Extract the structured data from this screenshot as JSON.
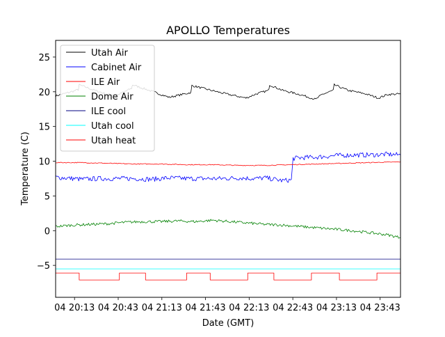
{
  "chart_data": {
    "type": "line",
    "title": "APOLLO Temperatures",
    "xlabel": "Date (GMT)",
    "ylabel": "Temperature (C)",
    "xlim": [
      20.0,
      23.95
    ],
    "ylim": [
      -9.6,
      27.4
    ],
    "x_units": "hours (GMT) on day 04",
    "xticks": [
      {
        "value": 20.2167,
        "label": "04 20:13"
      },
      {
        "value": 20.7167,
        "label": "04 20:43"
      },
      {
        "value": 21.2167,
        "label": "04 21:13"
      },
      {
        "value": 21.7167,
        "label": "04 21:43"
      },
      {
        "value": 22.2167,
        "label": "04 22:13"
      },
      {
        "value": 22.7167,
        "label": "04 22:43"
      },
      {
        "value": 23.2167,
        "label": "04 23:13"
      },
      {
        "value": 23.7167,
        "label": "04 23:43"
      }
    ],
    "yticks": [
      {
        "value": -5,
        "label": "−5"
      },
      {
        "value": 0,
        "label": "0"
      },
      {
        "value": 5,
        "label": "5"
      },
      {
        "value": 10,
        "label": "10"
      },
      {
        "value": 15,
        "label": "15"
      },
      {
        "value": 20,
        "label": "20"
      },
      {
        "value": 25,
        "label": "25"
      }
    ],
    "legend_position": "top-left",
    "series": [
      {
        "name": "Utah Air",
        "color": "#000000",
        "x": [
          20.0,
          20.15,
          20.26,
          20.27,
          20.45,
          20.6,
          20.72,
          20.87,
          20.88,
          21.05,
          21.3,
          21.55,
          21.56,
          21.75,
          21.95,
          22.18,
          22.3,
          22.44,
          22.45,
          22.6,
          22.8,
          22.98,
          23.05,
          23.18,
          23.19,
          23.35,
          23.55,
          23.7,
          23.8,
          23.95
        ],
        "values": [
          19.4,
          19.9,
          20.3,
          21.0,
          20.2,
          19.6,
          19.6,
          20.5,
          21.0,
          20.3,
          19.2,
          19.9,
          20.9,
          20.3,
          19.7,
          19.1,
          19.7,
          20.2,
          21.0,
          20.2,
          19.6,
          18.9,
          19.6,
          20.2,
          21.0,
          20.2,
          19.7,
          19.1,
          19.6,
          19.7
        ]
      },
      {
        "name": "Cabinet Air",
        "color": "#0000ff",
        "x": [
          20.0,
          20.1,
          20.3,
          20.5,
          20.7,
          20.9,
          21.1,
          21.3,
          21.5,
          21.7,
          21.9,
          22.1,
          22.3,
          22.4,
          22.5,
          22.6,
          22.7,
          22.72,
          22.8,
          23.0,
          23.2,
          23.4,
          23.6,
          23.8,
          23.95
        ],
        "values": [
          7.7,
          7.6,
          7.4,
          7.5,
          7.5,
          7.5,
          7.4,
          7.6,
          7.5,
          7.5,
          7.5,
          7.6,
          7.5,
          7.6,
          7.4,
          7.2,
          7.3,
          10.4,
          10.5,
          10.6,
          10.8,
          10.9,
          10.9,
          11.0,
          10.9
        ]
      },
      {
        "name": "ILE Air",
        "color": "#ff0000",
        "x": [
          20.0,
          20.3,
          20.6,
          20.9,
          21.2,
          21.5,
          21.8,
          22.1,
          22.4,
          22.7,
          23.0,
          23.3,
          23.6,
          23.95
        ],
        "values": [
          9.8,
          9.8,
          9.7,
          9.6,
          9.6,
          9.5,
          9.5,
          9.4,
          9.4,
          9.5,
          9.6,
          9.7,
          9.8,
          9.9
        ]
      },
      {
        "name": "Dome Air",
        "color": "#008000",
        "x": [
          20.0,
          20.2,
          20.4,
          20.6,
          20.8,
          21.0,
          21.2,
          21.4,
          21.6,
          21.8,
          22.0,
          22.2,
          22.4,
          22.6,
          22.8,
          23.0,
          23.2,
          23.4,
          23.6,
          23.8,
          23.95
        ],
        "values": [
          0.6,
          0.8,
          0.9,
          1.0,
          1.2,
          1.3,
          1.3,
          1.4,
          1.3,
          1.5,
          1.3,
          1.1,
          0.9,
          0.8,
          0.6,
          0.4,
          0.2,
          0.0,
          -0.3,
          -0.6,
          -1.0
        ]
      },
      {
        "name": "ILE cool",
        "color": "#000080",
        "x": [
          20.0,
          23.95
        ],
        "values": [
          -4.1,
          -4.1
        ]
      },
      {
        "name": "Utah cool",
        "color": "#00ffff",
        "x": [
          20.0,
          23.95
        ],
        "values": [
          -5.5,
          -5.5
        ]
      },
      {
        "name": "Utah heat",
        "color": "#ff0000",
        "step": true,
        "x": [
          20.0,
          20.27,
          20.27,
          20.73,
          20.73,
          21.03,
          21.03,
          21.5,
          21.5,
          21.77,
          21.77,
          22.2,
          22.2,
          22.5,
          22.5,
          22.93,
          22.93,
          23.25,
          23.25,
          23.68,
          23.68,
          23.95
        ],
        "values": [
          -6.1,
          -6.1,
          -7.1,
          -7.1,
          -6.1,
          -6.1,
          -7.1,
          -7.1,
          -6.1,
          -6.1,
          -7.1,
          -7.1,
          -6.1,
          -6.1,
          -7.1,
          -7.1,
          -6.1,
          -6.1,
          -7.1,
          -7.1,
          -6.1,
          -6.1
        ]
      }
    ]
  }
}
